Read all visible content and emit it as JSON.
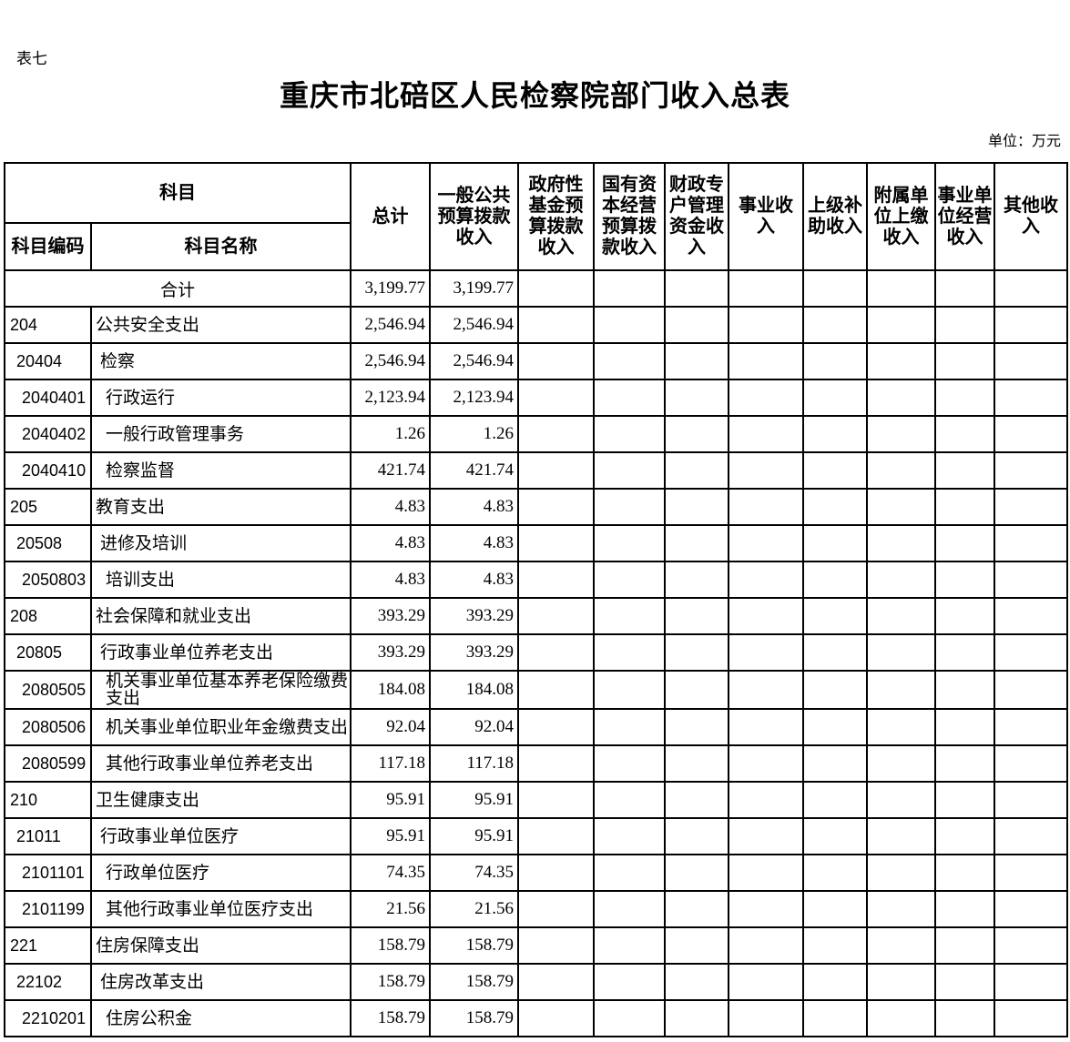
{
  "page": {
    "table_label": "表七",
    "title": "重庆市北碚区人民检察院部门收入总表",
    "unit_note": "单位：万元"
  },
  "colors": {
    "background": "#ffffff",
    "text": "#000000",
    "border": "#000000"
  },
  "table": {
    "header": {
      "subject_group": "科目",
      "subject_code": "科目编码",
      "subject_name": "科目名称",
      "columns": [
        "总计",
        "一般公共预算拨款收入",
        "政府性基金预算拨款收入",
        "国有资本经营预算拨款收入",
        "财政专户管理资金收入",
        "事业收入",
        "上级补助收入",
        "附属单位上缴收入",
        "事业单位经营收入",
        "其他收入"
      ]
    },
    "rows": [
      {
        "is_total": true,
        "code": "",
        "name": "合计",
        "level": 0,
        "values": [
          "3,199.77",
          "3,199.77",
          "",
          "",
          "",
          "",
          "",
          "",
          "",
          ""
        ]
      },
      {
        "is_total": false,
        "code": "204",
        "name": "公共安全支出",
        "level": 1,
        "values": [
          "2,546.94",
          "2,546.94",
          "",
          "",
          "",
          "",
          "",
          "",
          "",
          ""
        ]
      },
      {
        "is_total": false,
        "code": "20404",
        "name": "检察",
        "level": 2,
        "values": [
          "2,546.94",
          "2,546.94",
          "",
          "",
          "",
          "",
          "",
          "",
          "",
          ""
        ]
      },
      {
        "is_total": false,
        "code": "2040401",
        "name": "行政运行",
        "level": 3,
        "values": [
          "2,123.94",
          "2,123.94",
          "",
          "",
          "",
          "",
          "",
          "",
          "",
          ""
        ]
      },
      {
        "is_total": false,
        "code": "2040402",
        "name": "一般行政管理事务",
        "level": 3,
        "values": [
          "1.26",
          "1.26",
          "",
          "",
          "",
          "",
          "",
          "",
          "",
          ""
        ]
      },
      {
        "is_total": false,
        "code": "2040410",
        "name": "检察监督",
        "level": 3,
        "values": [
          "421.74",
          "421.74",
          "",
          "",
          "",
          "",
          "",
          "",
          "",
          ""
        ]
      },
      {
        "is_total": false,
        "code": "205",
        "name": "教育支出",
        "level": 1,
        "values": [
          "4.83",
          "4.83",
          "",
          "",
          "",
          "",
          "",
          "",
          "",
          ""
        ]
      },
      {
        "is_total": false,
        "code": "20508",
        "name": "进修及培训",
        "level": 2,
        "values": [
          "4.83",
          "4.83",
          "",
          "",
          "",
          "",
          "",
          "",
          "",
          ""
        ]
      },
      {
        "is_total": false,
        "code": "2050803",
        "name": "培训支出",
        "level": 3,
        "values": [
          "4.83",
          "4.83",
          "",
          "",
          "",
          "",
          "",
          "",
          "",
          ""
        ]
      },
      {
        "is_total": false,
        "code": "208",
        "name": "社会保障和就业支出",
        "level": 1,
        "values": [
          "393.29",
          "393.29",
          "",
          "",
          "",
          "",
          "",
          "",
          "",
          ""
        ]
      },
      {
        "is_total": false,
        "code": "20805",
        "name": "行政事业单位养老支出",
        "level": 2,
        "values": [
          "393.29",
          "393.29",
          "",
          "",
          "",
          "",
          "",
          "",
          "",
          ""
        ]
      },
      {
        "is_total": false,
        "code": "2080505",
        "name": "机关事业单位基本养老保险缴费支出",
        "level": 3,
        "values": [
          "184.08",
          "184.08",
          "",
          "",
          "",
          "",
          "",
          "",
          "",
          ""
        ]
      },
      {
        "is_total": false,
        "code": "2080506",
        "name": "机关事业单位职业年金缴费支出",
        "level": 3,
        "values": [
          "92.04",
          "92.04",
          "",
          "",
          "",
          "",
          "",
          "",
          "",
          ""
        ]
      },
      {
        "is_total": false,
        "code": "2080599",
        "name": "其他行政事业单位养老支出",
        "level": 3,
        "values": [
          "117.18",
          "117.18",
          "",
          "",
          "",
          "",
          "",
          "",
          "",
          ""
        ]
      },
      {
        "is_total": false,
        "code": "210",
        "name": "卫生健康支出",
        "level": 1,
        "values": [
          "95.91",
          "95.91",
          "",
          "",
          "",
          "",
          "",
          "",
          "",
          ""
        ]
      },
      {
        "is_total": false,
        "code": "21011",
        "name": "行政事业单位医疗",
        "level": 2,
        "values": [
          "95.91",
          "95.91",
          "",
          "",
          "",
          "",
          "",
          "",
          "",
          ""
        ]
      },
      {
        "is_total": false,
        "code": "2101101",
        "name": "行政单位医疗",
        "level": 3,
        "values": [
          "74.35",
          "74.35",
          "",
          "",
          "",
          "",
          "",
          "",
          "",
          ""
        ]
      },
      {
        "is_total": false,
        "code": "2101199",
        "name": "其他行政事业单位医疗支出",
        "level": 3,
        "values": [
          "21.56",
          "21.56",
          "",
          "",
          "",
          "",
          "",
          "",
          "",
          ""
        ]
      },
      {
        "is_total": false,
        "code": "221",
        "name": "住房保障支出",
        "level": 1,
        "values": [
          "158.79",
          "158.79",
          "",
          "",
          "",
          "",
          "",
          "",
          "",
          ""
        ]
      },
      {
        "is_total": false,
        "code": "22102",
        "name": "住房改革支出",
        "level": 2,
        "values": [
          "158.79",
          "158.79",
          "",
          "",
          "",
          "",
          "",
          "",
          "",
          ""
        ]
      },
      {
        "is_total": false,
        "code": "2210201",
        "name": "住房公积金",
        "level": 3,
        "values": [
          "158.79",
          "158.79",
          "",
          "",
          "",
          "",
          "",
          "",
          "",
          ""
        ]
      }
    ]
  }
}
